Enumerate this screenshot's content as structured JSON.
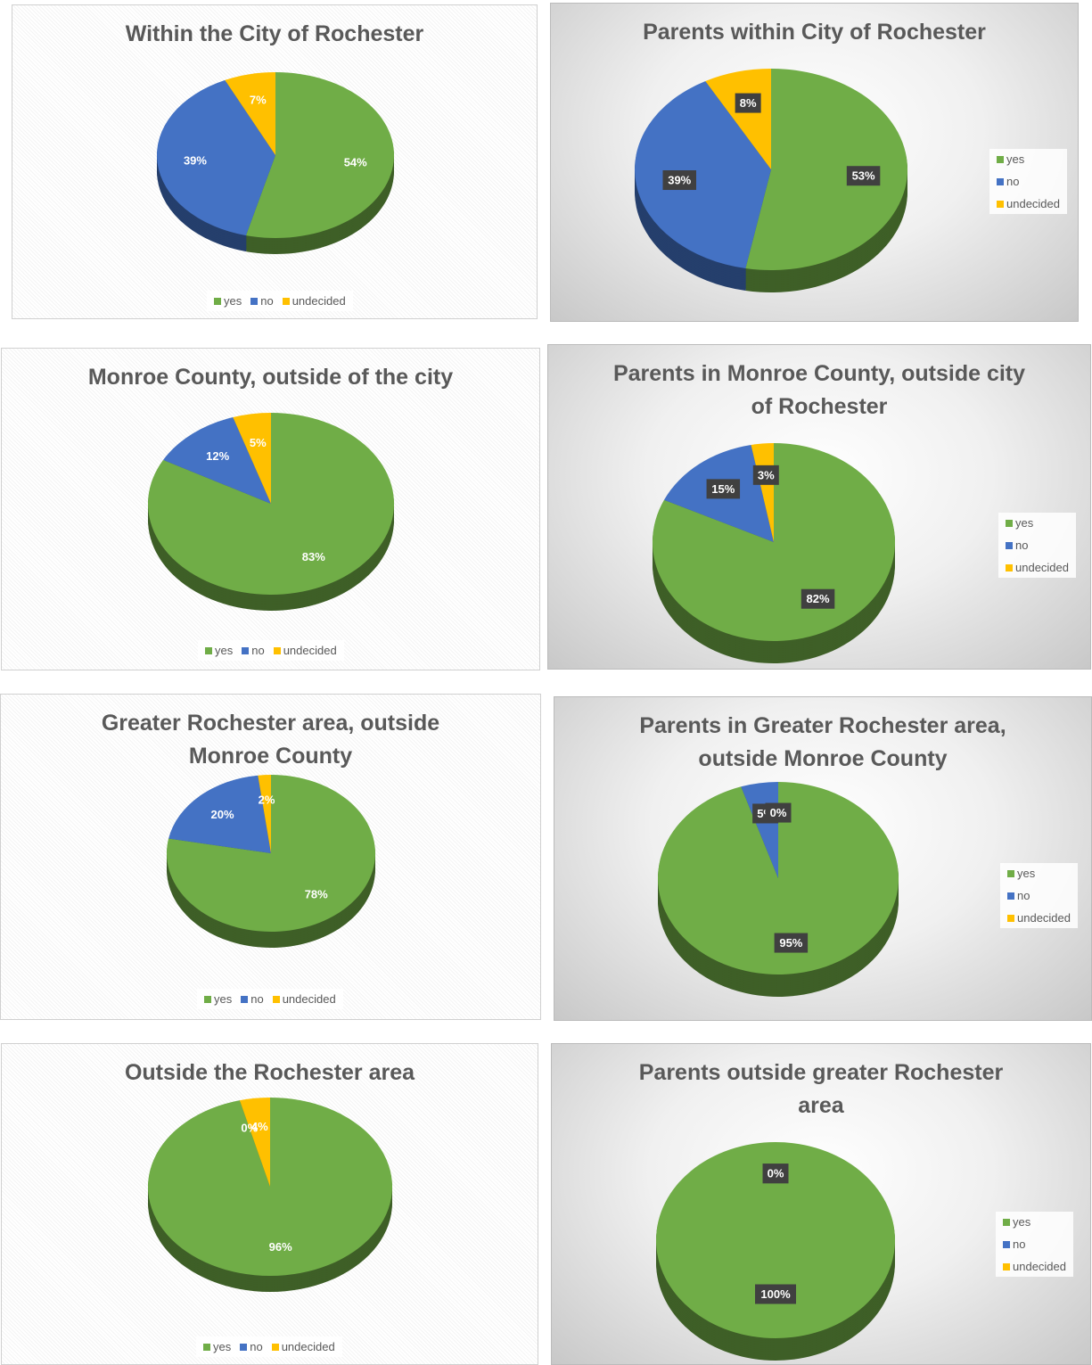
{
  "chart_data": [
    {
      "type": "pie",
      "title": "Within the City of Rochester",
      "categories": [
        "yes",
        "no",
        "undecided"
      ],
      "values": [
        54,
        39,
        7
      ],
      "value_labels": [
        "54%",
        "39%",
        "7%"
      ],
      "colors": [
        "#70ad47",
        "#4472c4",
        "#ffc000"
      ],
      "legend": "bottom",
      "label_style": "plain",
      "background": "plain"
    },
    {
      "type": "pie",
      "title": "Parents within City of Rochester",
      "categories": [
        "yes",
        "no",
        "undecided"
      ],
      "values": [
        53,
        39,
        8
      ],
      "value_labels": [
        "53%",
        "39%",
        "8%"
      ],
      "colors": [
        "#70ad47",
        "#4472c4",
        "#ffc000"
      ],
      "legend": "right",
      "label_style": "boxed",
      "background": "gradient"
    },
    {
      "type": "pie",
      "title": "Monroe County, outside of the city",
      "categories": [
        "yes",
        "no",
        "undecided"
      ],
      "values": [
        83,
        12,
        5
      ],
      "value_labels": [
        "83%",
        "12%",
        "5%"
      ],
      "colors": [
        "#70ad47",
        "#4472c4",
        "#ffc000"
      ],
      "legend": "bottom",
      "label_style": "plain",
      "background": "plain"
    },
    {
      "type": "pie",
      "title": "Parents in Monroe County, outside city of Rochester",
      "categories": [
        "yes",
        "no",
        "undecided"
      ],
      "values": [
        82,
        15,
        3
      ],
      "value_labels": [
        "82%",
        "15%",
        "3%"
      ],
      "colors": [
        "#70ad47",
        "#4472c4",
        "#ffc000"
      ],
      "legend": "right",
      "label_style": "boxed",
      "background": "gradient"
    },
    {
      "type": "pie",
      "title": "Greater Rochester area, outside Monroe County",
      "categories": [
        "yes",
        "no",
        "undecided"
      ],
      "values": [
        78,
        20,
        2
      ],
      "value_labels": [
        "78%",
        "20%",
        "2%"
      ],
      "colors": [
        "#70ad47",
        "#4472c4",
        "#ffc000"
      ],
      "legend": "bottom",
      "label_style": "plain",
      "background": "plain"
    },
    {
      "type": "pie",
      "title": "Parents in Greater Rochester area, outside Monroe County",
      "categories": [
        "yes",
        "no",
        "undecided"
      ],
      "values": [
        95,
        5,
        0
      ],
      "value_labels": [
        "95%",
        "5%",
        "0%"
      ],
      "colors": [
        "#70ad47",
        "#4472c4",
        "#ffc000"
      ],
      "legend": "right",
      "label_style": "boxed",
      "background": "gradient"
    },
    {
      "type": "pie",
      "title": "Outside the Rochester area",
      "categories": [
        "yes",
        "no",
        "undecided"
      ],
      "values": [
        96,
        0,
        4
      ],
      "value_labels": [
        "96%",
        "0%",
        "4%"
      ],
      "colors": [
        "#70ad47",
        "#4472c4",
        "#ffc000"
      ],
      "legend": "bottom",
      "label_style": "plain",
      "background": "plain"
    },
    {
      "type": "pie",
      "title": "Parents outside greater Rochester area",
      "categories": [
        "yes",
        "no",
        "undecided"
      ],
      "values": [
        100,
        0,
        0
      ],
      "value_labels": [
        "100%",
        "0%",
        "0%"
      ],
      "colors": [
        "#70ad47",
        "#4472c4",
        "#ffc000"
      ],
      "legend": "right",
      "label_style": "boxed",
      "background": "gradient"
    }
  ]
}
